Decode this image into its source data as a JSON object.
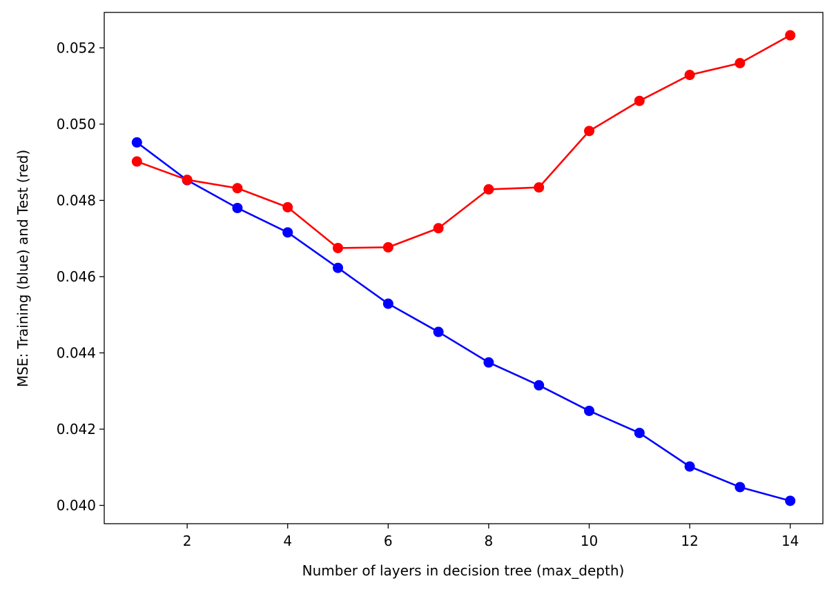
{
  "chart_data": {
    "type": "line",
    "title": "",
    "xlabel": "Number of layers in decision tree (max_depth)",
    "ylabel": "MSE: Training (blue) and Test (red)",
    "x": [
      1,
      2,
      3,
      4,
      5,
      6,
      7,
      8,
      9,
      10,
      11,
      12,
      13,
      14
    ],
    "xlim": [
      0.35,
      14.65
    ],
    "ylim": [
      0.03952,
      0.05293
    ],
    "xticks": [
      2,
      4,
      6,
      8,
      10,
      12,
      14
    ],
    "xtick_labels": [
      "2",
      "4",
      "6",
      "8",
      "10",
      "12",
      "14"
    ],
    "yticks": [
      0.04,
      0.042,
      0.044,
      0.046,
      0.048,
      0.05,
      0.052
    ],
    "ytick_labels": [
      "0.040",
      "0.042",
      "0.044",
      "0.046",
      "0.048",
      "0.050",
      "0.052"
    ],
    "grid": false,
    "legend": "none",
    "series": [
      {
        "color": "#0000ff",
        "marker": "circle",
        "values": [
          0.04952,
          0.04853,
          0.0478,
          0.04716,
          0.04623,
          0.04529,
          0.04455,
          0.04375,
          0.04315,
          0.04248,
          0.0419,
          0.04102,
          0.04048,
          0.04012
        ]
      },
      {
        "color": "#ff0000",
        "marker": "circle",
        "values": [
          0.04902,
          0.04854,
          0.04832,
          0.04782,
          0.04675,
          0.04677,
          0.04727,
          0.04829,
          0.04834,
          0.04982,
          0.05061,
          0.05129,
          0.0516,
          0.05233
        ]
      }
    ]
  }
}
